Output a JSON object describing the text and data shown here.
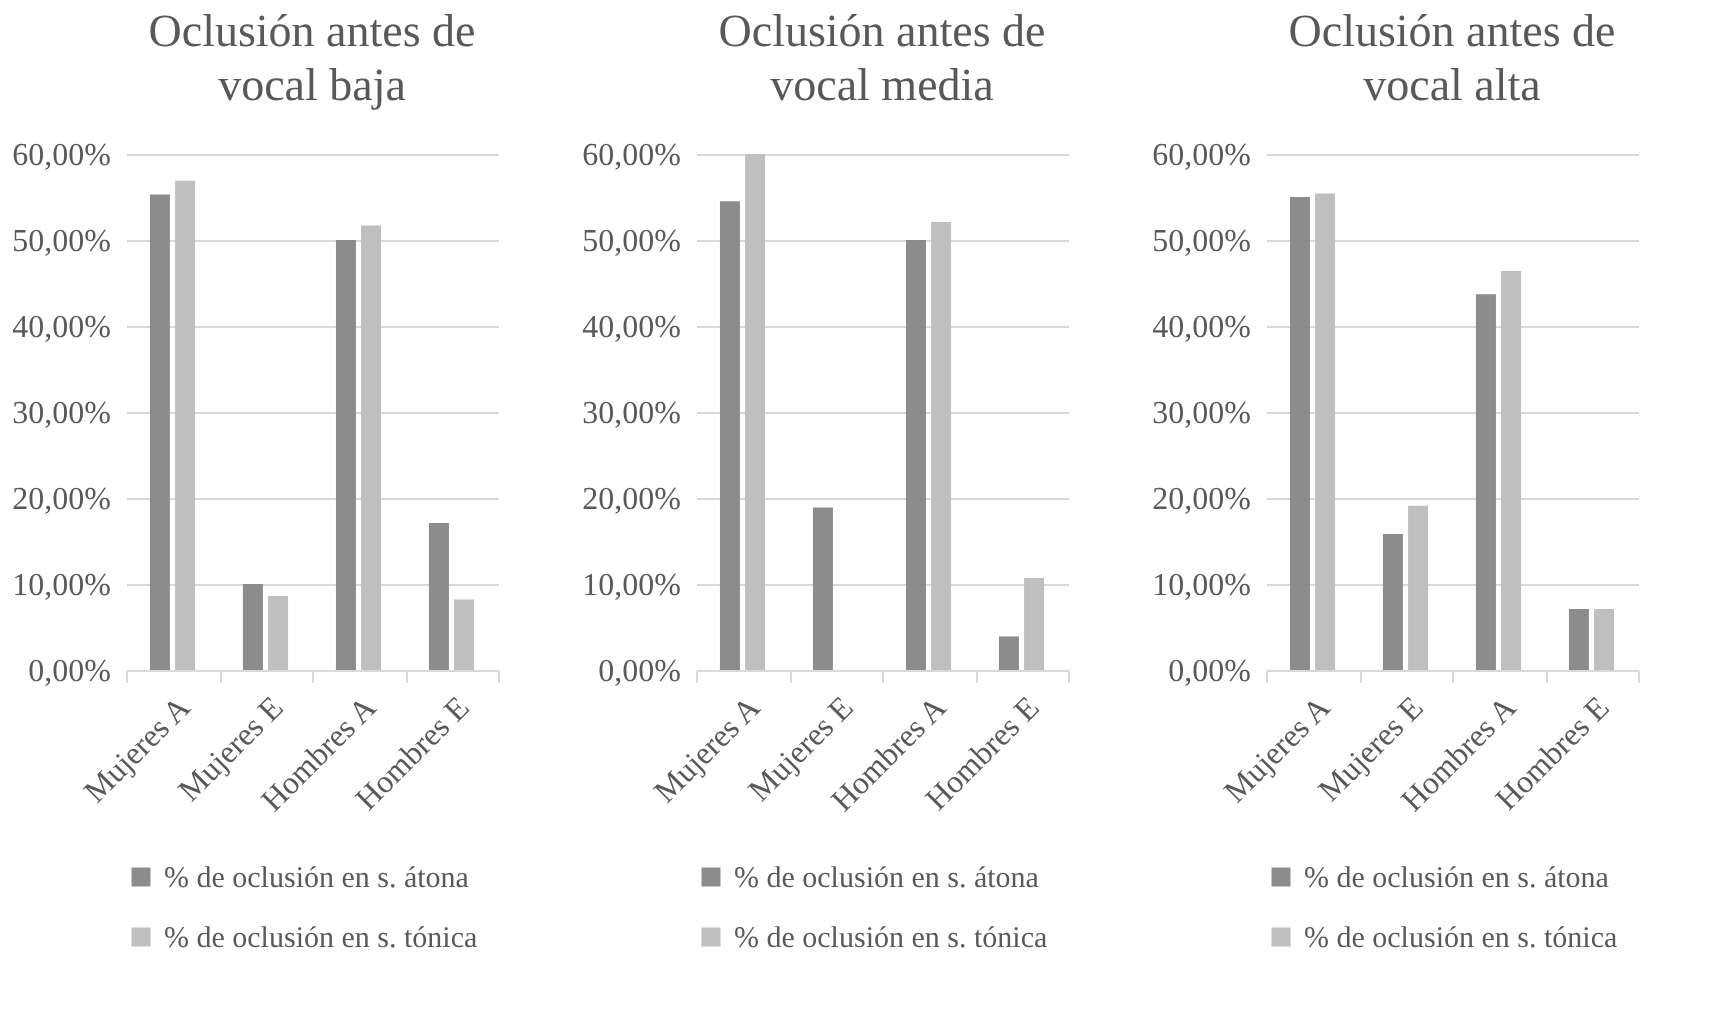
{
  "chart_data": [
    {
      "type": "bar",
      "title": "Oclusión antes de vocal baja",
      "categories": [
        "Mujeres A",
        "Mujeres E",
        "Hombres A",
        "Hombres E"
      ],
      "series": [
        {
          "name": "% de oclusión en s. átona",
          "color": "#8c8c8c",
          "values": [
            55.3,
            10.0,
            50.0,
            17.1
          ]
        },
        {
          "name": "% de oclusión en s. tónica",
          "color": "#bfbfbf",
          "values": [
            56.9,
            8.6,
            51.7,
            8.2
          ]
        }
      ],
      "ylim": [
        0,
        60
      ],
      "yticks": [
        {
          "value": 0,
          "label": "0,00%"
        },
        {
          "value": 10,
          "label": "10,00%"
        },
        {
          "value": 20,
          "label": "20,00%"
        },
        {
          "value": 30,
          "label": "30,00%"
        },
        {
          "value": 40,
          "label": "40,00%"
        },
        {
          "value": 50,
          "label": "50,00%"
        },
        {
          "value": 60,
          "label": "60,00%"
        }
      ],
      "grid": "y",
      "legend": "bottom"
    },
    {
      "type": "bar",
      "title": "Oclusión antes de vocal media",
      "categories": [
        "Mujeres A",
        "Mujeres E",
        "Hombres A",
        "Hombres E"
      ],
      "series": [
        {
          "name": "% de oclusión en s. átona",
          "color": "#8c8c8c",
          "values": [
            54.5,
            18.9,
            50.0,
            3.9
          ]
        },
        {
          "name": "% de oclusión en s. tónica",
          "color": "#bfbfbf",
          "values": [
            60.0,
            0,
            52.1,
            10.7
          ]
        }
      ],
      "ylim": [
        0,
        60
      ],
      "yticks": [
        {
          "value": 0,
          "label": "0,00%"
        },
        {
          "value": 10,
          "label": "10,00%"
        },
        {
          "value": 20,
          "label": "20,00%"
        },
        {
          "value": 30,
          "label": "30,00%"
        },
        {
          "value": 40,
          "label": "40,00%"
        },
        {
          "value": 50,
          "label": "50,00%"
        },
        {
          "value": 60,
          "label": "60,00%"
        }
      ],
      "grid": "y",
      "legend": "bottom"
    },
    {
      "type": "bar",
      "title": "Oclusión antes de vocal alta",
      "categories": [
        "Mujeres A",
        "Mujeres E",
        "Hombres A",
        "Hombres E"
      ],
      "series": [
        {
          "name": "% de oclusión en s. átona",
          "color": "#8c8c8c",
          "values": [
            55.0,
            15.8,
            43.7,
            7.1
          ]
        },
        {
          "name": "% de oclusión en s. tónica",
          "color": "#bfbfbf",
          "values": [
            55.4,
            19.1,
            46.4,
            7.1
          ]
        }
      ],
      "ylim": [
        0,
        60
      ],
      "yticks": [
        {
          "value": 0,
          "label": "0,00%"
        },
        {
          "value": 10,
          "label": "10,00%"
        },
        {
          "value": 20,
          "label": "20,00%"
        },
        {
          "value": 30,
          "label": "30,00%"
        },
        {
          "value": 40,
          "label": "40,00%"
        },
        {
          "value": 50,
          "label": "50,00%"
        },
        {
          "value": 60,
          "label": "60,00%"
        }
      ],
      "grid": "y",
      "legend": "bottom"
    }
  ]
}
